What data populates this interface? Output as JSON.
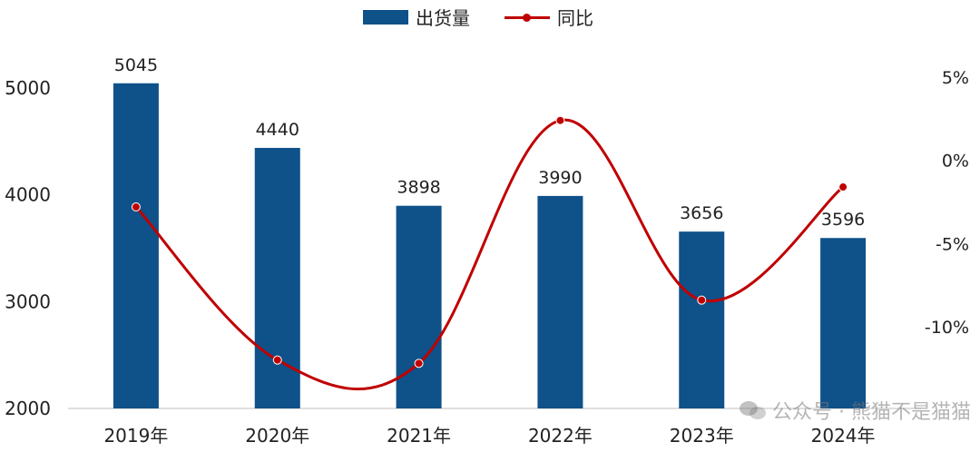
{
  "legend": {
    "bar_label": "出货量",
    "line_label": "同比"
  },
  "watermark": {
    "label": "公众号 · 熊猫不是猫猫"
  },
  "colors": {
    "bar": "#0f5189",
    "line": "#c00000",
    "axis_text": "#222222"
  },
  "chart_data": {
    "type": "bar",
    "categories": [
      "2019年",
      "2020年",
      "2021年",
      "2022年",
      "2023年",
      "2024年"
    ],
    "series": [
      {
        "name": "出货量",
        "type": "bar",
        "axis": "left",
        "values": [
          5045,
          4440,
          3898,
          3990,
          3656,
          3596
        ]
      },
      {
        "name": "同比",
        "type": "line",
        "axis": "right",
        "smooth": true,
        "values": [
          -2.8,
          -12.0,
          -12.2,
          2.4,
          -8.4,
          -1.6
        ]
      }
    ],
    "left_axis": {
      "ylim": [
        2000,
        5400
      ],
      "ticks": [
        2000,
        3000,
        4000,
        5000
      ],
      "tick_labels": [
        "2000",
        "3000",
        "4000",
        "5000"
      ]
    },
    "right_axis": {
      "ylim": [
        -15,
        7
      ],
      "ticks": [
        -10,
        -5,
        0,
        5
      ],
      "tick_labels": [
        "-10%",
        "-5%",
        "0%",
        "5%"
      ]
    },
    "data_labels": [
      "5045",
      "4440",
      "3898",
      "3990",
      "3656",
      "3596"
    ],
    "legend_position": "top-center",
    "grid": false
  }
}
